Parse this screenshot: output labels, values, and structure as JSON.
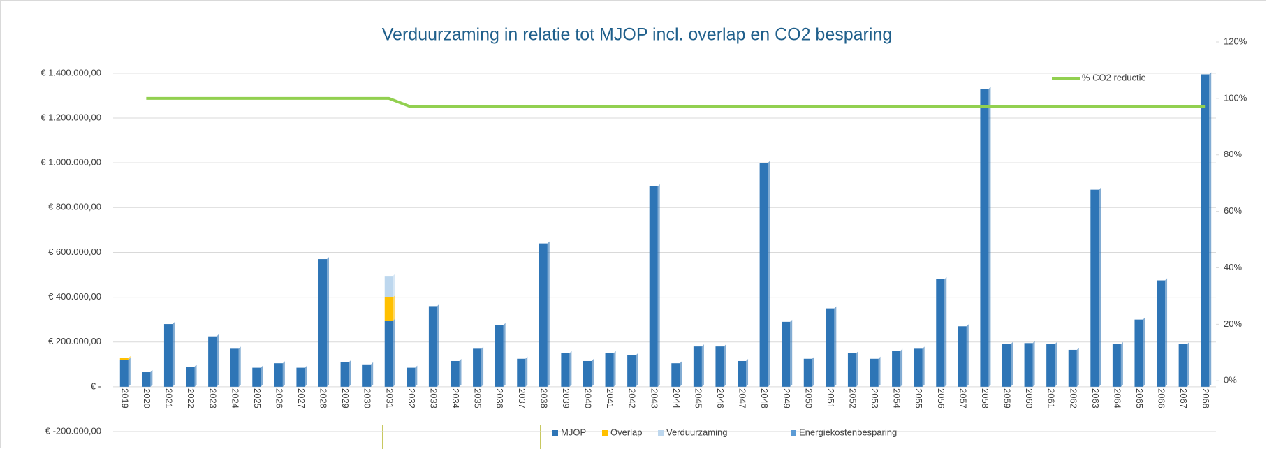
{
  "chart_data": {
    "type": "bar",
    "stacked": true,
    "title": "Verduurzaming in relatie tot MJOP incl. overlap en CO2 besparing",
    "categories": [
      "2019",
      "2020",
      "2021",
      "2022",
      "2023",
      "2024",
      "2025",
      "2026",
      "2027",
      "2028",
      "2029",
      "2030",
      "2031",
      "2032",
      "2033",
      "2034",
      "2035",
      "2036",
      "2037",
      "2038",
      "2039",
      "2040",
      "2041",
      "2042",
      "2043",
      "2044",
      "2045",
      "2046",
      "2047",
      "2048",
      "2049",
      "2050",
      "2051",
      "2052",
      "2053",
      "2054",
      "2055",
      "2056",
      "2057",
      "2058",
      "2059",
      "2060",
      "2061",
      "2062",
      "2063",
      "2064",
      "2065",
      "2066",
      "2067",
      "2068"
    ],
    "series": [
      {
        "name": "MJOP",
        "color": "#2e75b6",
        "values": [
          120000,
          65000,
          280000,
          90000,
          225000,
          170000,
          85000,
          105000,
          85000,
          570000,
          110000,
          100000,
          295000,
          85000,
          360000,
          115000,
          170000,
          275000,
          125000,
          640000,
          150000,
          115000,
          150000,
          140000,
          895000,
          105000,
          180000,
          180000,
          115000,
          1000000,
          290000,
          125000,
          350000,
          150000,
          125000,
          160000,
          170000,
          480000,
          270000,
          1330000,
          190000,
          195000,
          190000,
          165000,
          880000,
          190000,
          300000,
          475000,
          190000,
          1395000
        ]
      },
      {
        "name": "Overlap",
        "color": "#ffc000",
        "values": [
          8000,
          0,
          0,
          0,
          0,
          0,
          0,
          0,
          0,
          0,
          0,
          0,
          105000,
          0,
          0,
          0,
          0,
          0,
          0,
          0,
          0,
          0,
          0,
          0,
          0,
          0,
          0,
          0,
          0,
          0,
          0,
          0,
          0,
          0,
          0,
          0,
          0,
          0,
          0,
          0,
          0,
          0,
          0,
          0,
          0,
          0,
          0,
          0,
          0,
          0
        ]
      },
      {
        "name": "Verduurzaming",
        "color": "#bdd7ee",
        "values": [
          0,
          0,
          0,
          0,
          0,
          0,
          0,
          0,
          0,
          0,
          0,
          0,
          95000,
          0,
          0,
          0,
          0,
          0,
          0,
          0,
          0,
          0,
          0,
          0,
          0,
          0,
          0,
          0,
          0,
          0,
          0,
          0,
          0,
          0,
          0,
          0,
          0,
          0,
          0,
          0,
          0,
          0,
          0,
          0,
          0,
          0,
          0,
          0,
          0,
          0
        ]
      },
      {
        "name": "Energiekostenbesparing",
        "color": "#5b9bd5",
        "values": [
          0,
          0,
          0,
          0,
          0,
          0,
          0,
          0,
          0,
          0,
          0,
          0,
          0,
          0,
          0,
          0,
          0,
          0,
          0,
          0,
          0,
          0,
          0,
          0,
          0,
          0,
          0,
          0,
          0,
          0,
          0,
          0,
          0,
          0,
          0,
          0,
          0,
          0,
          0,
          0,
          0,
          0,
          0,
          0,
          0,
          0,
          0,
          0,
          0,
          0
        ]
      },
      {
        "name": "% CO2 reductie",
        "type": "line",
        "axis": "y2",
        "color": "#92d050",
        "values": [
          null,
          100,
          100,
          100,
          100,
          100,
          100,
          100,
          100,
          100,
          100,
          100,
          100,
          97,
          97,
          97,
          97,
          97,
          97,
          97,
          97,
          97,
          97,
          97,
          97,
          97,
          97,
          97,
          97,
          97,
          97,
          97,
          97,
          97,
          97,
          97,
          97,
          97,
          97,
          97,
          97,
          97,
          97,
          97,
          97,
          97,
          97,
          97,
          97,
          97
        ]
      }
    ],
    "ylim": [
      -200000,
      1540000
    ],
    "yticks": [
      {
        "value": -200000,
        "label": "€ -200.000,00"
      },
      {
        "value": 0,
        "label": "€ -"
      },
      {
        "value": 200000,
        "label": "€ 200.000,00"
      },
      {
        "value": 400000,
        "label": "€ 400.000,00"
      },
      {
        "value": 600000,
        "label": "€ 600.000,00"
      },
      {
        "value": 800000,
        "label": "€ 800.000,00"
      },
      {
        "value": 1000000,
        "label": "€ 1.000.000,00"
      },
      {
        "value": 1200000,
        "label": "€ 1.200.000,00"
      },
      {
        "value": 1400000,
        "label": "€ 1.400.000,00"
      }
    ],
    "y2lim": [
      -18,
      120
    ],
    "y2ticks": [
      {
        "value": 0,
        "label": "0%"
      },
      {
        "value": 20,
        "label": "20%"
      },
      {
        "value": 40,
        "label": "40%"
      },
      {
        "value": 60,
        "label": "60%"
      },
      {
        "value": 80,
        "label": "80%"
      },
      {
        "value": 100,
        "label": "100%"
      },
      {
        "value": 120,
        "label": "120%"
      }
    ],
    "grid": true
  }
}
